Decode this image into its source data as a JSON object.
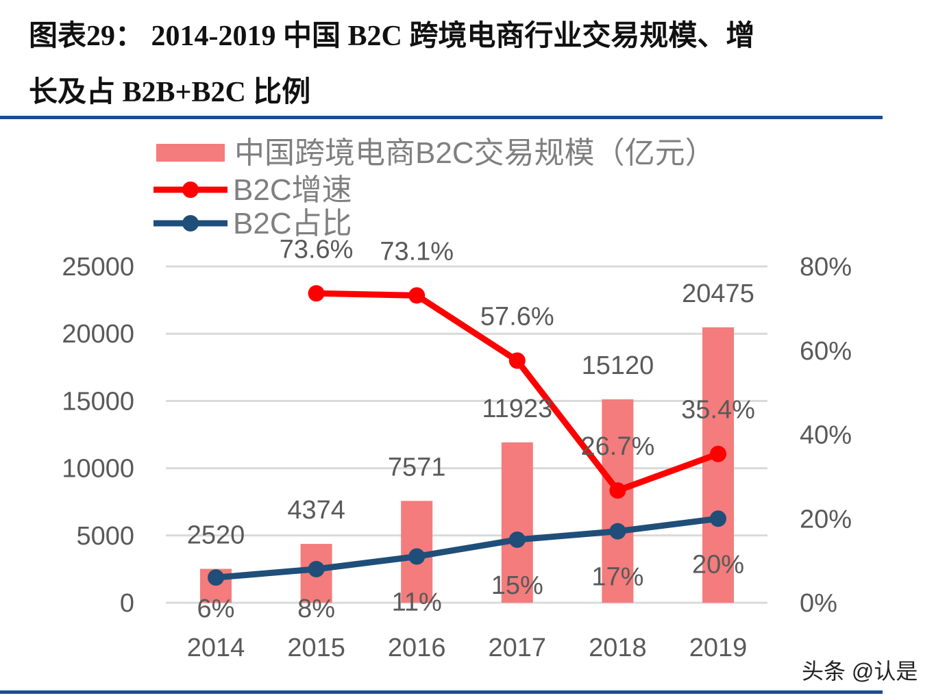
{
  "header": {
    "title_line1": "图表29：  2014-2019 中国 B2C 跨境电商行业交易规模、增",
    "title_line2": "长及占 B2B+B2C 比例"
  },
  "watermark": "头条 @认是",
  "chart_data": {
    "type": "bar+line",
    "categories": [
      "2014",
      "2015",
      "2016",
      "2017",
      "2018",
      "2019"
    ],
    "series": [
      {
        "name": "中国跨境电商B2C交易规模（亿元）",
        "type": "bar",
        "axis": "left",
        "color": "#f47c7c",
        "values": [
          2520,
          4374,
          7571,
          11923,
          15120,
          20475
        ],
        "labels": [
          "2520",
          "4374",
          "7571",
          "11923",
          "15120",
          "20475"
        ]
      },
      {
        "name": "B2C增速",
        "type": "line",
        "axis": "right",
        "color": "#ff0000",
        "values": [
          null,
          73.6,
          73.1,
          57.6,
          26.7,
          35.4
        ],
        "labels": [
          "",
          "73.6%",
          "73.1%",
          "57.6%",
          "26.7%",
          "35.4%"
        ]
      },
      {
        "name": "B2C占比",
        "type": "line",
        "axis": "right",
        "color": "#1f4e79",
        "values": [
          6,
          8,
          11,
          15,
          17,
          20
        ],
        "labels": [
          "6%",
          "8%",
          "11%",
          "15%",
          "17%",
          "20%"
        ]
      }
    ],
    "left_axis": {
      "ylim": [
        0,
        25000
      ],
      "ticks": [
        "0",
        "5000",
        "10000",
        "15000",
        "20000",
        "25000"
      ]
    },
    "right_axis": {
      "ylim": [
        0,
        80
      ],
      "ticks": [
        "0%",
        "20%",
        "40%",
        "60%",
        "80%"
      ]
    },
    "grid": true,
    "legend": "top-left"
  }
}
